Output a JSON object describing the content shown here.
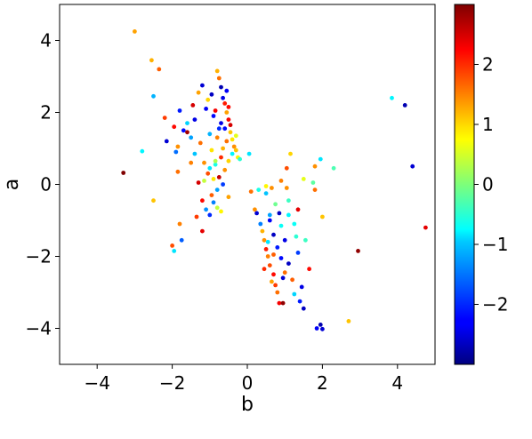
{
  "chart_data": {
    "type": "scatter",
    "xlabel": "b",
    "ylabel": "a",
    "xlim": [
      -5,
      5
    ],
    "ylim": [
      -5,
      5
    ],
    "xticks": [
      -4,
      -2,
      0,
      2,
      4
    ],
    "yticks": [
      -4,
      -2,
      0,
      2,
      4
    ],
    "xtick_labels": [
      "−4",
      "−2",
      "0",
      "2",
      "4"
    ],
    "ytick_labels": [
      "−4",
      "−2",
      "0",
      "2",
      "4"
    ],
    "grid": false,
    "colorbar": {
      "colormap": "jet",
      "range": [
        -3,
        3
      ],
      "ticks": [
        -2,
        -1,
        0,
        1,
        2
      ],
      "tick_labels": [
        "−2",
        "−1",
        "0",
        "1",
        "2"
      ]
    },
    "points": [
      [
        -3.0,
        4.25,
        1.3
      ],
      [
        -2.55,
        3.45,
        1.2
      ],
      [
        -2.35,
        3.2,
        1.7
      ],
      [
        -2.5,
        2.45,
        -1.2
      ],
      [
        -3.3,
        0.32,
        3.0
      ],
      [
        -2.8,
        0.92,
        -0.8
      ],
      [
        -2.5,
        -0.45,
        1.1
      ],
      [
        -2.2,
        1.85,
        1.9
      ],
      [
        -2.15,
        1.2,
        -2.5
      ],
      [
        -1.95,
        1.6,
        2.2
      ],
      [
        -1.9,
        0.9,
        -1.6
      ],
      [
        -1.85,
        1.05,
        1.4
      ],
      [
        -2.0,
        -1.7,
        1.8
      ],
      [
        -1.95,
        -1.85,
        -0.9
      ],
      [
        -1.85,
        0.35,
        1.6
      ],
      [
        -1.8,
        -1.1,
        1.5
      ],
      [
        -1.75,
        -1.55,
        -1.7
      ],
      [
        -1.8,
        2.05,
        -2.1
      ],
      [
        -1.7,
        1.5,
        -2.2
      ],
      [
        -1.6,
        1.45,
        2.8
      ],
      [
        -1.5,
        1.3,
        -1.3
      ],
      [
        -1.45,
        2.2,
        2.5
      ],
      [
        -1.4,
        1.8,
        -2.4
      ],
      [
        -1.4,
        0.85,
        -1.1
      ],
      [
        -1.35,
        -0.9,
        1.9
      ],
      [
        -1.3,
        2.55,
        1.3
      ],
      [
        -1.3,
        0.05,
        2.5
      ],
      [
        -1.25,
        1.15,
        1.6
      ],
      [
        -1.2,
        2.75,
        -2.5
      ],
      [
        -1.2,
        -1.3,
        2.4
      ],
      [
        -1.15,
        0.6,
        1.4
      ],
      [
        -1.1,
        -0.7,
        -1.4
      ],
      [
        -1.1,
        2.1,
        -2.3
      ],
      [
        -1.05,
        0.3,
        1.8
      ],
      [
        -1.05,
        2.35,
        1.0
      ],
      [
        -1.0,
        -0.85,
        -2.0
      ],
      [
        -1.0,
        1.4,
        -1.2
      ],
      [
        -0.95,
        2.5,
        -2.6
      ],
      [
        -0.95,
        0.95,
        0.9
      ],
      [
        -0.9,
        -0.5,
        -1.5
      ],
      [
        -0.9,
        1.9,
        -2.2
      ],
      [
        -0.85,
        2.05,
        2.3
      ],
      [
        -0.85,
        0.55,
        -0.6
      ],
      [
        -0.8,
        3.15,
        1.2
      ],
      [
        -0.8,
        -0.65,
        0.4
      ],
      [
        -0.8,
        1.3,
        1.5
      ],
      [
        -0.75,
        2.95,
        1.6
      ],
      [
        -0.75,
        0.2,
        2.6
      ],
      [
        -0.7,
        2.7,
        -2.7
      ],
      [
        -0.7,
        1.7,
        -2.4
      ],
      [
        -0.7,
        0.75,
        2.0
      ],
      [
        -0.7,
        -0.75,
        0.8
      ],
      [
        -0.65,
        2.4,
        -2.4
      ],
      [
        -0.65,
        1.0,
        1.2
      ],
      [
        -0.65,
        0.0,
        -1.9
      ],
      [
        -0.6,
        2.25,
        2.1
      ],
      [
        -0.6,
        1.55,
        -2.2
      ],
      [
        -0.6,
        0.4,
        1.4
      ],
      [
        -0.55,
        2.0,
        1.3
      ],
      [
        -0.55,
        1.2,
        1.6
      ],
      [
        -0.5,
        1.8,
        2.3
      ],
      [
        -0.5,
        0.65,
        1.0
      ],
      [
        -0.5,
        -0.35,
        1.3
      ],
      [
        -0.45,
        1.45,
        1.1
      ],
      [
        -0.4,
        1.25,
        0.9
      ],
      [
        -0.4,
        0.85,
        -0.8
      ],
      [
        -0.35,
        1.05,
        1.4
      ],
      [
        -0.3,
        0.95,
        1.1
      ],
      [
        -0.3,
        1.35,
        0.6
      ],
      [
        -0.25,
        0.75,
        0.8
      ],
      [
        -0.2,
        0.7,
        -0.5
      ],
      [
        -0.5,
        2.15,
        2.2
      ],
      [
        -0.55,
        2.6,
        -2.3
      ],
      [
        -0.45,
        1.65,
        2.5
      ],
      [
        -0.75,
        1.55,
        -2.0
      ],
      [
        -0.85,
        0.65,
        0.3
      ],
      [
        -1.15,
        0.1,
        0.4
      ],
      [
        -1.0,
        0.45,
        -0.9
      ],
      [
        -0.9,
        0.15,
        0.9
      ],
      [
        -0.95,
        -0.3,
        1.7
      ],
      [
        -0.8,
        -0.15,
        -1.3
      ],
      [
        -1.2,
        -0.45,
        2.2
      ],
      [
        -1.5,
        0.6,
        1.5
      ],
      [
        -1.6,
        1.7,
        -1.0
      ],
      [
        0.05,
        0.85,
        -0.9
      ],
      [
        0.1,
        -0.2,
        1.6
      ],
      [
        0.2,
        -0.7,
        1.4
      ],
      [
        0.3,
        -0.15,
        -0.6
      ],
      [
        0.25,
        -0.8,
        -2.5
      ],
      [
        0.35,
        -1.1,
        -1.5
      ],
      [
        0.4,
        -1.3,
        1.2
      ],
      [
        0.45,
        -1.55,
        1.4
      ],
      [
        0.5,
        -1.8,
        2.1
      ],
      [
        0.5,
        -0.25,
        -1.1
      ],
      [
        0.55,
        -2.0,
        1.5
      ],
      [
        0.6,
        -1.0,
        -2.3
      ],
      [
        0.6,
        -2.25,
        1.8
      ],
      [
        0.65,
        -0.1,
        1.4
      ],
      [
        0.7,
        -2.5,
        2.2
      ],
      [
        0.7,
        -1.4,
        -2.6
      ],
      [
        0.75,
        -2.8,
        1.9
      ],
      [
        0.8,
        -1.75,
        -2.1
      ],
      [
        0.8,
        -3.0,
        1.6
      ],
      [
        0.85,
        -0.8,
        -2.6
      ],
      [
        0.85,
        -3.3,
        2.3
      ],
      [
        0.9,
        -2.05,
        -2.2
      ],
      [
        0.9,
        -1.15,
        -0.7
      ],
      [
        0.95,
        -3.3,
        2.9
      ],
      [
        1.0,
        -1.55,
        -2.4
      ],
      [
        1.0,
        -2.45,
        1.6
      ],
      [
        1.05,
        -0.1,
        1.4
      ],
      [
        1.05,
        0.45,
        1.8
      ],
      [
        1.1,
        -2.2,
        -2.6
      ],
      [
        1.1,
        -0.85,
        -0.8
      ],
      [
        1.15,
        0.85,
        1.0
      ],
      [
        1.2,
        -2.65,
        1.7
      ],
      [
        1.25,
        -3.05,
        -1.0
      ],
      [
        1.3,
        -1.45,
        -0.5
      ],
      [
        1.35,
        -0.7,
        2.4
      ],
      [
        1.4,
        -3.25,
        -2.1
      ],
      [
        1.45,
        -2.85,
        -2.4
      ],
      [
        1.5,
        -3.45,
        -2.6
      ],
      [
        1.55,
        -1.55,
        -0.4
      ],
      [
        1.65,
        -2.35,
        2.2
      ],
      [
        1.75,
        0.05,
        -0.2
      ],
      [
        1.8,
        0.5,
        1.4
      ],
      [
        1.8,
        -0.15,
        1.6
      ],
      [
        1.85,
        -4.0,
        -2.3
      ],
      [
        1.95,
        -3.9,
        -2.7
      ],
      [
        2.0,
        -4.02,
        -2.5
      ],
      [
        2.0,
        -0.9,
        1.1
      ],
      [
        1.95,
        0.7,
        -0.9
      ],
      [
        2.3,
        0.45,
        -0.3
      ],
      [
        2.7,
        -3.8,
        1.1
      ],
      [
        2.95,
        -1.85,
        2.9
      ],
      [
        3.85,
        2.4,
        -0.8
      ],
      [
        4.2,
        2.2,
        -2.7
      ],
      [
        4.4,
        0.5,
        -2.5
      ],
      [
        4.75,
        -1.2,
        2.4
      ],
      [
        0.5,
        -0.05,
        0.8
      ],
      [
        0.6,
        -0.85,
        -1.3
      ],
      [
        0.7,
        -1.95,
        1.7
      ],
      [
        0.75,
        -0.55,
        -0.1
      ],
      [
        1.1,
        -0.45,
        -0.4
      ],
      [
        0.95,
        -2.6,
        -2.5
      ],
      [
        0.55,
        -1.6,
        -0.9
      ],
      [
        1.25,
        -1.1,
        -0.7
      ],
      [
        0.45,
        -2.35,
        2.0
      ],
      [
        0.65,
        -2.7,
        1.3
      ],
      [
        1.5,
        0.15,
        0.6
      ],
      [
        0.9,
        0.1,
        1.5
      ],
      [
        1.35,
        -1.9,
        -1.9
      ]
    ]
  }
}
